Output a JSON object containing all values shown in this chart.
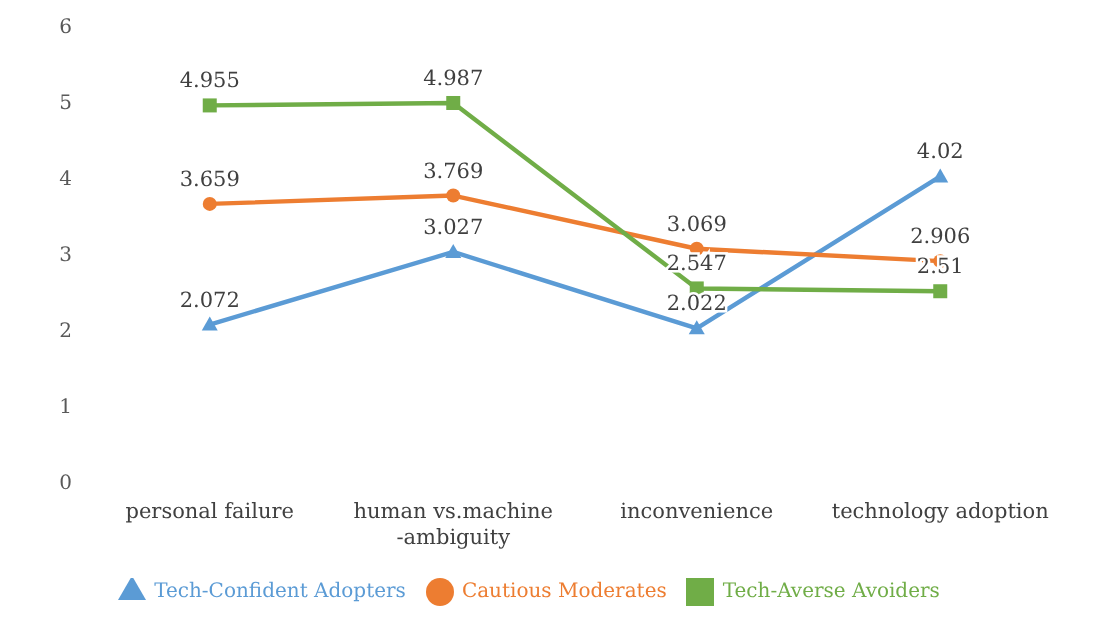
{
  "chart_data": {
    "type": "line",
    "categories": [
      "personal failure",
      "human vs.machine\n-ambiguity",
      "inconvenience",
      "technology adoption"
    ],
    "series": [
      {
        "name": "Tech-Confident Adopters",
        "color": "#5b9bd5",
        "marker": "triangle",
        "values": [
          2.072,
          3.027,
          2.022,
          4.02
        ]
      },
      {
        "name": "Cautious Moderates",
        "color": "#ed7d31",
        "marker": "circle",
        "values": [
          3.659,
          3.769,
          3.069,
          2.906
        ]
      },
      {
        "name": "Tech-Averse Avoiders",
        "color": "#70ad47",
        "marker": "square",
        "values": [
          4.955,
          4.987,
          2.547,
          2.51
        ]
      }
    ],
    "ylim": [
      0,
      6
    ],
    "yticks": [
      0,
      1,
      2,
      3,
      4,
      5,
      6
    ],
    "grid": false,
    "data_labels": true,
    "legend": "bottom",
    "line_style": "solid"
  }
}
